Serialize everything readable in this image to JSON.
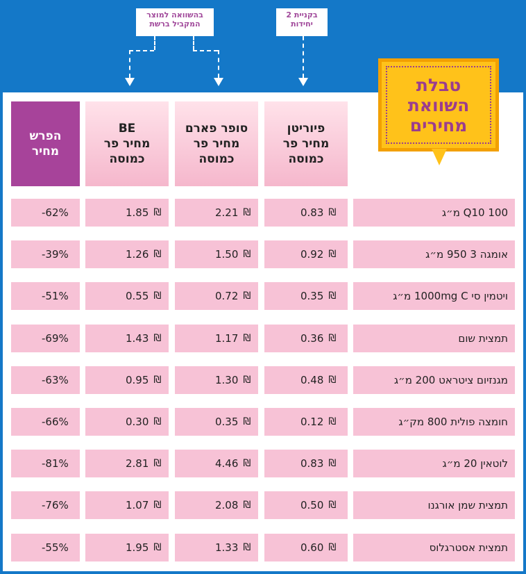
{
  "title": "טבלת\nהשוואת\nמחירים",
  "annotations": {
    "compare_note": "בהשוואה למוצר\nהמקביל ברשת",
    "purchase_note": "בקניית 2\nיחידות"
  },
  "headers": {
    "puriten": "פיוריטן\nמחיר פר\nכמוסה",
    "superpharm": "סופר פארם\nמחיר פר\nכמוסה",
    "be": "BE\nמחיר פר\nכמוסה",
    "diff": "הפרש\nמחיר"
  },
  "currency": "₪",
  "rows": [
    {
      "name": "100 Q10 מ״ג",
      "puriten": "0.83",
      "superpharm": "2.21",
      "be": "1.85",
      "diff": "-62%"
    },
    {
      "name": "אומגה 3 950 מ״ג",
      "puriten": "0.92",
      "superpharm": "1.50",
      "be": "1.26",
      "diff": "-39%"
    },
    {
      "name": "ויטמין סי 1000mg C מ״ג",
      "puriten": "0.35",
      "superpharm": "0.72",
      "be": "0.55",
      "diff": "-51%"
    },
    {
      "name": "תמצית שום",
      "puriten": "0.36",
      "superpharm": "1.17",
      "be": "1.43",
      "diff": "-69%"
    },
    {
      "name": "מגנזיום ציטראט 200 מ״ג",
      "puriten": "0.48",
      "superpharm": "1.30",
      "be": "0.95",
      "diff": "-63%"
    },
    {
      "name": "חומצה פולית 800 מק״ג",
      "puriten": "0.12",
      "superpharm": "0.35",
      "be": "0.30",
      "diff": "-66%"
    },
    {
      "name": "לוטאין 20 מ״ג",
      "puriten": "0.83",
      "superpharm": "4.46",
      "be": "2.81",
      "diff": "-81%"
    },
    {
      "name": "תמצית שמן אורגנו",
      "puriten": "0.50",
      "superpharm": "2.08",
      "be": "1.07",
      "diff": "-76%"
    },
    {
      "name": "תמצית אסטרגלוס",
      "puriten": "0.60",
      "superpharm": "1.33",
      "be": "1.95",
      "diff": "-55%"
    }
  ]
}
